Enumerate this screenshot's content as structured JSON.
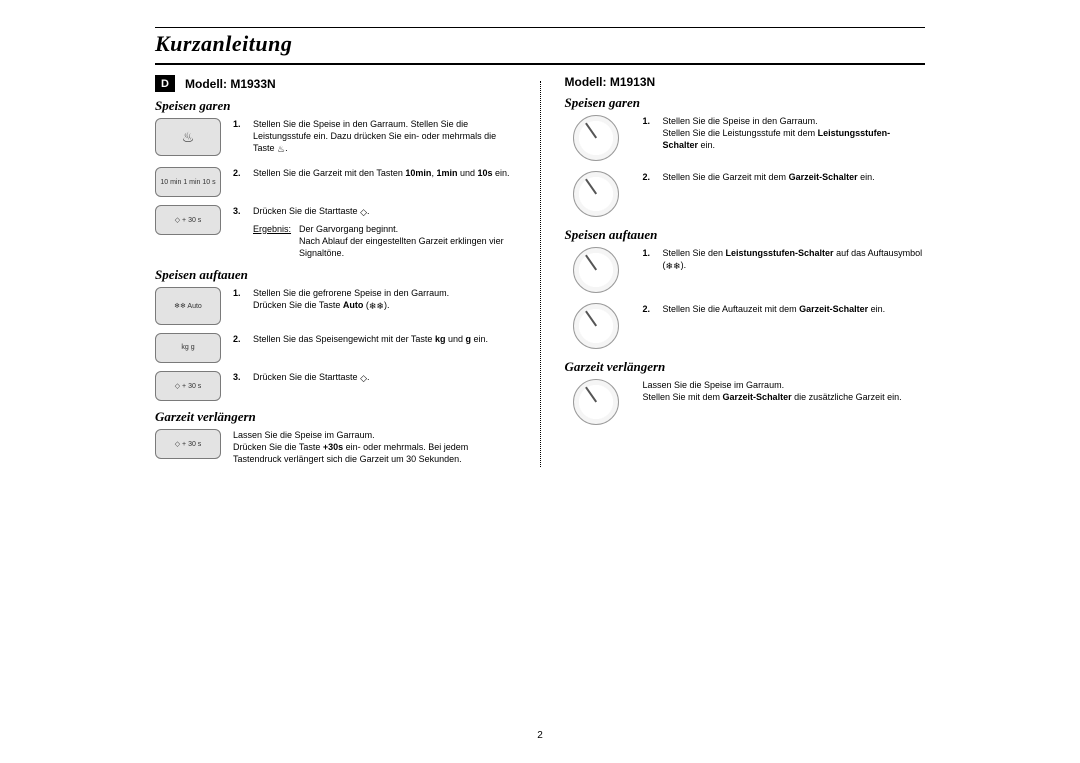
{
  "page": {
    "title": "Kurzanleitung",
    "number": "2",
    "lang_badge": "D"
  },
  "glyph": {
    "power": "♨",
    "defrost": "❄❄",
    "start": "◇"
  },
  "left": {
    "model": "Modell: M1933N",
    "sec1_title": "Speisen garen",
    "sec1": {
      "s1": "Stellen Sie die Speise in den Garraum.\nStellen Sie die Leistungsstufe ein. Dazu drücken Sie ein- oder mehrmals die Taste ",
      "s1_tail": ".",
      "s2_a": "Stellen Sie die Garzeit mit den Tasten ",
      "s2_b1": "10min",
      "s2_b2": "1min",
      "s2_b3": "10s",
      "s2_c": " und ",
      "s2_d": " ein.",
      "s3": "Drücken Sie die Starttaste ",
      "res_label": "Ergebnis:",
      "res_txt": "Der Garvorgang beginnt.\nNach Ablauf der eingestellten Garzeit erklingen vier Signaltöne."
    },
    "sec2_title": "Speisen auftauen",
    "sec2": {
      "s1": "Stellen Sie die gefrorene Speise in den Garraum.\nDrücken Sie die Taste ",
      "s1_bold": "Auto",
      "s1_tail": " (",
      "s1_tail2": ").",
      "s2_a": "Stellen Sie das Speisengewicht mit der Taste ",
      "s2_b1": "kg",
      "s2_b2": "g",
      "s2_c": " und ",
      "s2_d": " ein.",
      "s3": "Drücken Sie die Starttaste "
    },
    "sec3_title": "Garzeit verlängern",
    "sec3": {
      "t1": "Lassen Sie die Speise im Garraum.\nDrücken Sie die Taste ",
      "t1_bold": "+30s",
      "t1_tail": " ein- oder mehrmals. Bei jedem Tastendruck verlängert sich die Garzeit um 30 Sekunden."
    },
    "panel": {
      "p1": "♨",
      "p2": "10 min   1 min   10 s",
      "p3": "◇ + 30 s",
      "p4": "❄❄ Auto",
      "p5": "kg      g",
      "p6": "◇ + 30 s",
      "p7": "◇ + 30 s"
    }
  },
  "right": {
    "model": "Modell: M1913N",
    "sec1_title": "Speisen garen",
    "sec1": {
      "s1": "Stellen Sie die Speise in den Garraum.\nStellen Sie die Leistungsstufe mit dem ",
      "s1_bold": "Leistungsstufen-Schalter",
      "s1_tail": " ein.",
      "s2_a": "Stellen Sie die Garzeit mit dem ",
      "s2_bold": "Garzeit-Schalter",
      "s2_tail": " ein."
    },
    "sec2_title": "Speisen auftauen",
    "sec2": {
      "s1_a": "Stellen Sie den ",
      "s1_bold": "Leistungsstufen-Schalter",
      "s1_b": " auf das Auftausymbol (",
      "s1_tail": ").",
      "s2_a": "Stellen Sie die Auftauzeit mit dem ",
      "s2_bold": "Garzeit-Schalter",
      "s2_tail": " ein."
    },
    "sec3_title": "Garzeit verlängern",
    "sec3": {
      "t1": "Lassen Sie die Speise im Garraum.\nStellen Sie mit dem ",
      "t1_bold": "Garzeit-Schalter",
      "t1_tail": " die zusätzliche Garzeit ein."
    }
  }
}
